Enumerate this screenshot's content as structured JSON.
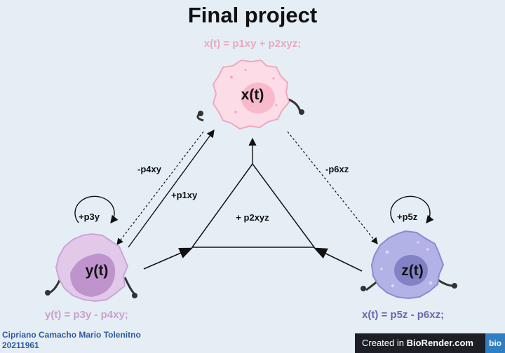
{
  "title": "Final project",
  "equations": {
    "x": "x(t) = p1xy + p2xyz;",
    "y": "y(t) = p3y - p4xy;",
    "z": "x(t) = p5z - p6xz;"
  },
  "cells": {
    "x": {
      "label": "x(t)",
      "color": "#fcdce6"
    },
    "y": {
      "label": "y(t)",
      "color": "#e2c9ea"
    },
    "z": {
      "label": "z(t)",
      "color": "#b3b2e6"
    }
  },
  "edges": {
    "minus_p4xy": "-p4xy",
    "plus_p1xy": "+p1xy",
    "minus_p6xz": "-p6xz",
    "plus_p3y": "+p3y",
    "plus_p5z": "+p5z",
    "plus_p2xyz": "+ p2xyz"
  },
  "author": {
    "name": "Cipriano Camacho Mario Tolenitno",
    "id": "20211961"
  },
  "badge": {
    "prefix": "Created in",
    "brand": "BioRender.com",
    "logo": "bio"
  }
}
